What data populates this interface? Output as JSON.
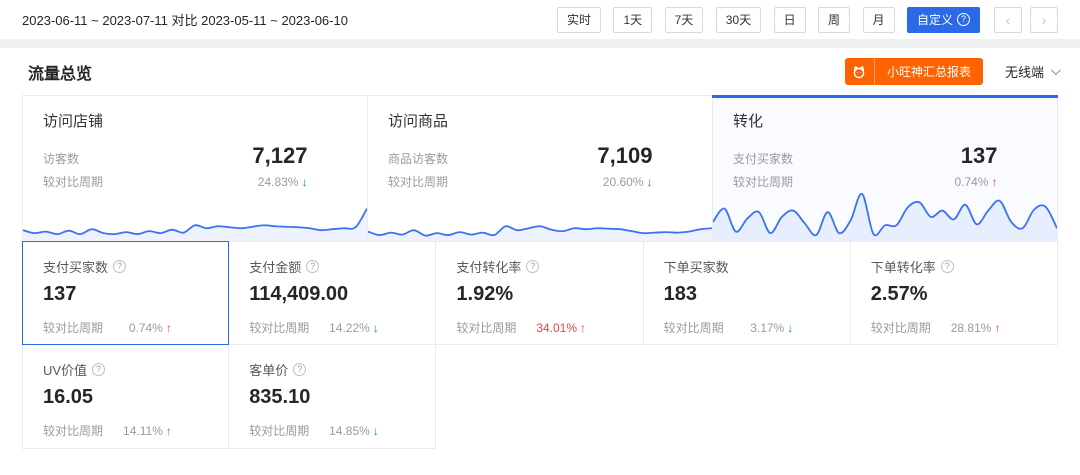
{
  "topbar": {
    "date_text": "2023-06-11 ~ 2023-07-11 对比 2023-05-11 ~ 2023-06-10",
    "range_buttons": [
      {
        "label": "实时"
      },
      {
        "label": "1天"
      },
      {
        "label": "7天"
      },
      {
        "label": "30天"
      },
      {
        "label": "日"
      },
      {
        "label": "周"
      },
      {
        "label": "月"
      },
      {
        "label": "自定义",
        "active": true,
        "help_icon": true
      }
    ],
    "prev_icon": "‹",
    "next_icon": "›"
  },
  "overview": {
    "title": "流量总览",
    "report_button_label": "小旺神汇总报表",
    "terminal_selector": "无线端"
  },
  "panels": [
    {
      "title": "访问店铺",
      "metric_label": "访客数",
      "value": "7,127",
      "compare_label": "较对比周期",
      "change": "24.83%",
      "arrow": "↓",
      "trend": "down"
    },
    {
      "title": "访问商品",
      "metric_label": "商品访客数",
      "value": "7,109",
      "compare_label": "较对比周期",
      "change": "20.60%",
      "arrow": "↓",
      "trend": "down"
    },
    {
      "title": "转化",
      "metric_label": "支付买家数",
      "value": "137",
      "compare_label": "较对比周期",
      "change": "0.74%",
      "arrow": "↑",
      "trend": "up",
      "selected": true
    }
  ],
  "cards": [
    {
      "label": "支付买家数",
      "help_icon": true,
      "value": "137",
      "compare_label": "较对比周期",
      "change": "0.74%",
      "arrow": "↑",
      "trend": "up",
      "selected": true
    },
    {
      "label": "支付金额",
      "help_icon": true,
      "value": "114,409.00",
      "compare_label": "较对比周期",
      "change": "14.22%",
      "arrow": "↓",
      "trend": "down"
    },
    {
      "label": "支付转化率",
      "help_icon": true,
      "value": "1.92%",
      "compare_label": "较对比周期",
      "change": "34.01%",
      "arrow": "↑",
      "trend": "up",
      "change_highlight": true
    },
    {
      "label": "下单买家数",
      "help_icon": false,
      "value": "183",
      "compare_label": "较对比周期",
      "change": "3.17%",
      "arrow": "↓",
      "trend": "down"
    },
    {
      "label": "下单转化率",
      "help_icon": true,
      "value": "2.57%",
      "compare_label": "较对比周期",
      "change": "28.81%",
      "arrow": "↑",
      "trend": "up"
    },
    {
      "label": "UV价值",
      "help_icon": true,
      "value": "16.05",
      "compare_label": "较对比周期",
      "change": "14.11%",
      "arrow": "↑",
      "trend": "up"
    },
    {
      "label": "客单价",
      "help_icon": true,
      "value": "835.10",
      "compare_label": "较对比周期",
      "change": "14.85%",
      "arrow": "↓",
      "trend": "down"
    }
  ],
  "colors": {
    "accent_blue": "#2a6ae9",
    "line_blue": "#3b73f0",
    "up_red": "#f04141",
    "down_green": "#00a650",
    "report_orange": "#ff6200"
  },
  "chart_data": [
    {
      "type": "area",
      "title": "访问店铺 访客数 日趋势 (无坐标轴, 相对值0-100)",
      "x_start": "2023-06-11",
      "x_end": "2023-07-11",
      "values": [
        18,
        12,
        15,
        10,
        17,
        10,
        20,
        12,
        10,
        14,
        10,
        16,
        12,
        19,
        13,
        28,
        22,
        26,
        24,
        22,
        25,
        28,
        26,
        25,
        24,
        22,
        18,
        20,
        22,
        24,
        62
      ]
    },
    {
      "type": "area",
      "title": "访问商品 商品访客数 日趋势 (无坐标轴, 相对值0-100)",
      "x_start": "2023-06-11",
      "x_end": "2023-07-11",
      "values": [
        15,
        8,
        13,
        9,
        18,
        7,
        12,
        8,
        14,
        9,
        13,
        8,
        26,
        18,
        22,
        26,
        19,
        16,
        22,
        20,
        22,
        21,
        20,
        16,
        12,
        13,
        14,
        13,
        15,
        20,
        22
      ]
    },
    {
      "type": "area",
      "title": "转化 支付买家数 日趋势 (无坐标轴, 相对值0-100)",
      "x_start": "2023-06-11",
      "x_end": "2023-07-11",
      "values": [
        35,
        62,
        15,
        42,
        55,
        12,
        45,
        58,
        32,
        8,
        55,
        12,
        38,
        92,
        10,
        28,
        28,
        65,
        75,
        45,
        58,
        40,
        70,
        30,
        58,
        78,
        35,
        22,
        60,
        66,
        22
      ]
    }
  ]
}
